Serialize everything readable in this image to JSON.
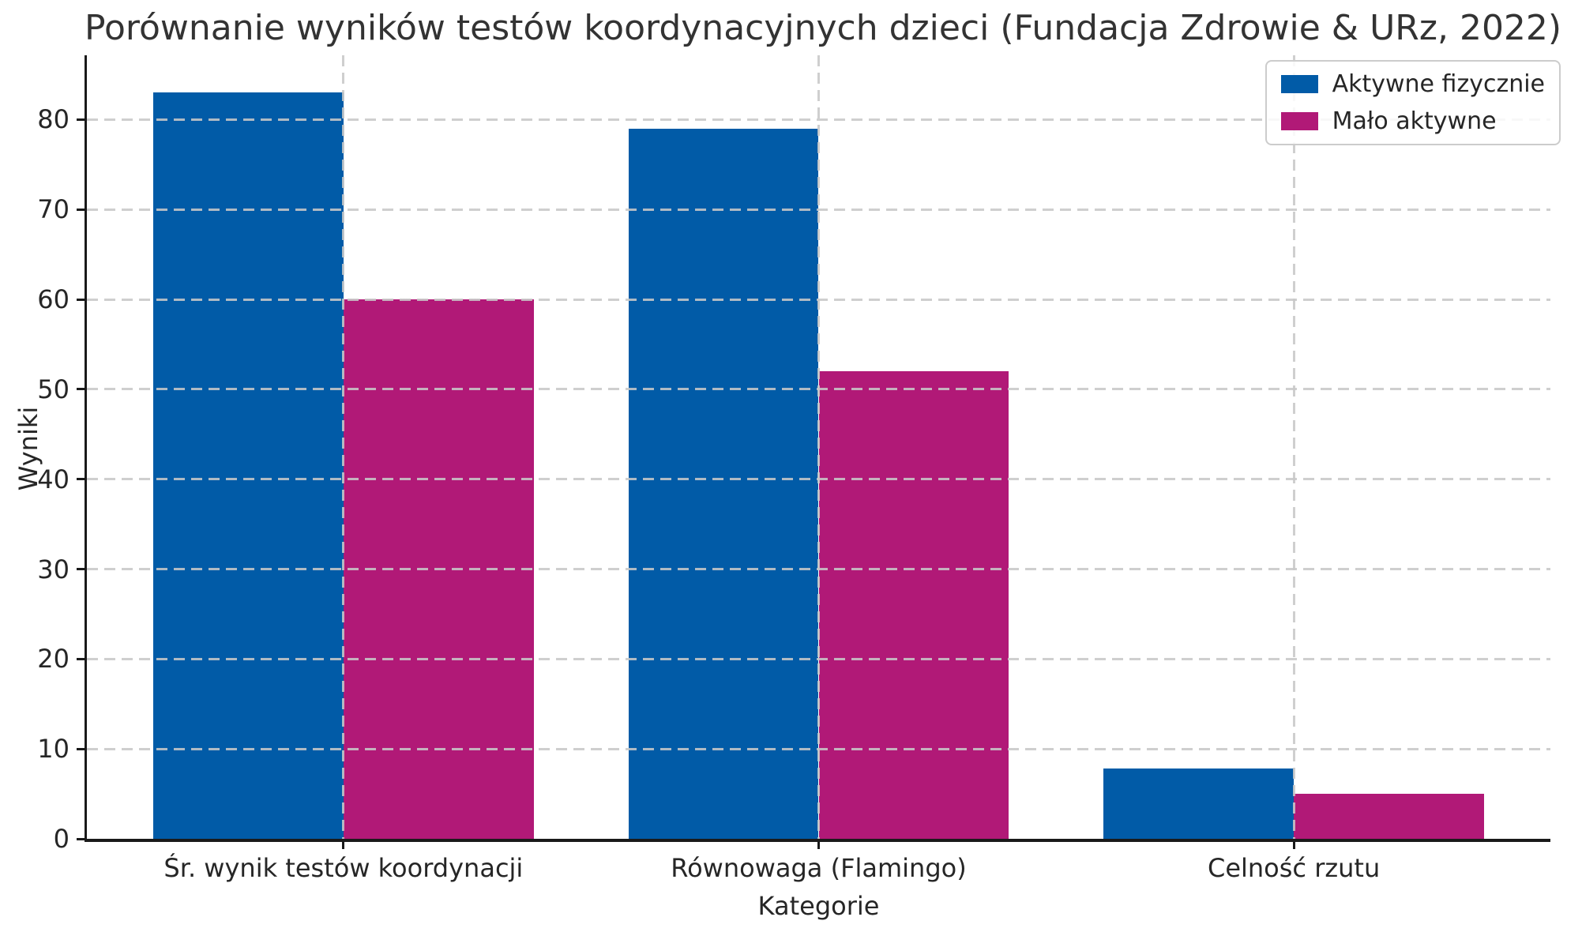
{
  "chart_data": {
    "type": "bar",
    "title": "Porównanie wyników testów koordynacyjnych dzieci (Fundacja Zdrowie & URz, 2022)",
    "xlabel": "Kategorie",
    "ylabel": "Wyniki",
    "categories": [
      "Śr. wynik testów koordynacji",
      "Równowaga (Flamingo)",
      "Celność rzutu"
    ],
    "series": [
      {
        "name": "Aktywne fizycznie",
        "color": "#015ba7",
        "values": [
          83,
          79,
          7.8
        ]
      },
      {
        "name": "Mało aktywne",
        "color": "#b11977",
        "values": [
          60,
          52,
          5
        ]
      }
    ],
    "ylim": [
      0,
      87.15
    ],
    "yticks": [
      0,
      10,
      20,
      30,
      40,
      50,
      60,
      70,
      80
    ],
    "grid": true,
    "grid_style": "dashed",
    "grid_above_bars": true,
    "legend_position": "upper right",
    "colors": {
      "axis": "#1a1a1a",
      "grid": "#c8c8c8",
      "text": "#262626",
      "title": "#333333"
    }
  }
}
